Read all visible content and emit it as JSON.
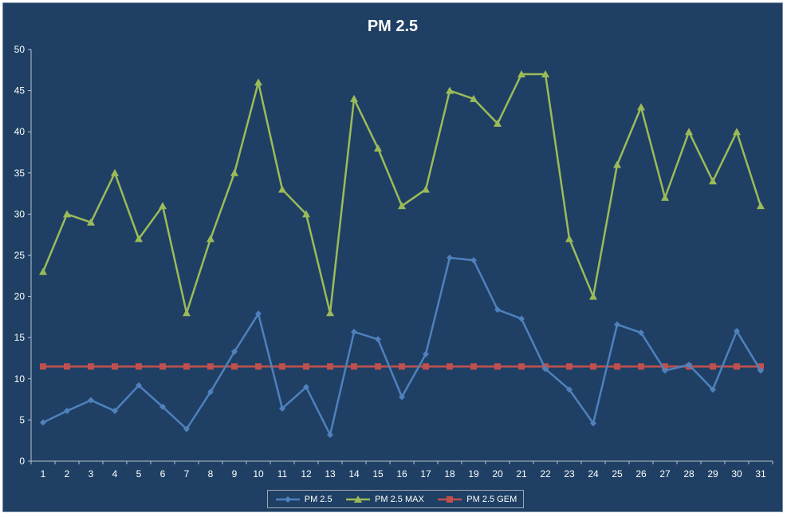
{
  "chart_data": {
    "type": "line",
    "title": "PM 2.5",
    "xlabel": "",
    "ylabel": "",
    "categories": [
      "1",
      "2",
      "3",
      "4",
      "5",
      "6",
      "7",
      "8",
      "9",
      "10",
      "11",
      "12",
      "13",
      "14",
      "15",
      "16",
      "17",
      "18",
      "19",
      "20",
      "21",
      "22",
      "23",
      "24",
      "25",
      "26",
      "27",
      "28",
      "29",
      "30",
      "31"
    ],
    "ylim": [
      0,
      50
    ],
    "yticks": [
      "0",
      "5",
      "10",
      "15",
      "20",
      "25",
      "30",
      "35",
      "40",
      "45",
      "50"
    ],
    "grid": false,
    "legend_position": "bottom",
    "series": [
      {
        "name": "PM 2.5",
        "color": "#4f81bd",
        "marker": "diamond",
        "values": [
          4.7,
          6.1,
          7.4,
          6.1,
          9.2,
          6.6,
          3.9,
          8.4,
          13.3,
          17.9,
          6.4,
          9.0,
          3.2,
          15.7,
          14.8,
          7.8,
          13.0,
          24.7,
          24.4,
          18.4,
          17.3,
          11.2,
          8.7,
          4.6,
          16.6,
          15.6,
          11.0,
          11.7,
          8.7,
          15.8,
          11.0
        ]
      },
      {
        "name": "PM 2.5 MAX",
        "color": "#9bbb59",
        "marker": "triangle",
        "values": [
          23,
          30,
          29,
          35,
          27,
          31,
          18,
          27,
          35,
          46,
          33,
          30,
          18,
          44,
          38,
          31,
          33,
          45,
          44,
          41,
          47,
          47,
          27,
          20,
          36,
          43,
          32,
          40,
          34,
          40,
          31
        ]
      },
      {
        "name": "PM 2.5 GEM",
        "color": "#c0504d",
        "marker": "square",
        "values": [
          11.5,
          11.5,
          11.5,
          11.5,
          11.5,
          11.5,
          11.5,
          11.5,
          11.5,
          11.5,
          11.5,
          11.5,
          11.5,
          11.5,
          11.5,
          11.5,
          11.5,
          11.5,
          11.5,
          11.5,
          11.5,
          11.5,
          11.5,
          11.5,
          11.5,
          11.5,
          11.5,
          11.5,
          11.5,
          11.5,
          11.5
        ]
      }
    ]
  }
}
